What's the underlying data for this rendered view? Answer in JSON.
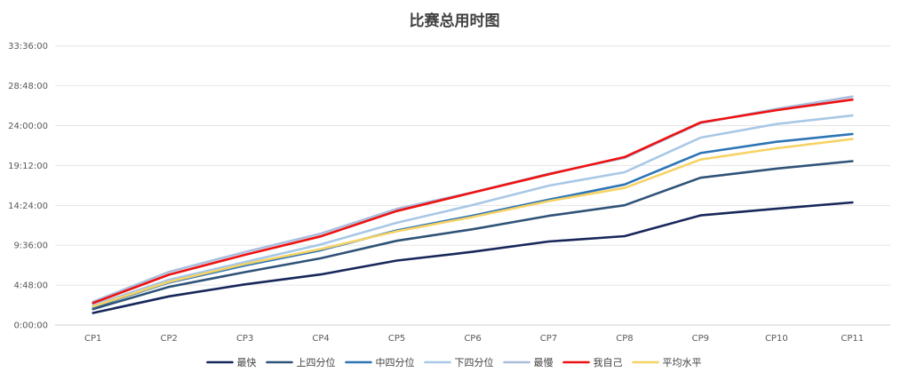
{
  "chart_data": {
    "type": "line",
    "title": "比赛总用时图",
    "xlabel": "",
    "ylabel": "",
    "categories": [
      "CP1",
      "CP2",
      "CP3",
      "CP4",
      "CP5",
      "CP6",
      "CP7",
      "CP8",
      "CP9",
      "CP10",
      "CP11"
    ],
    "y_unit": "seconds",
    "ylim": [
      0,
      122400
    ],
    "y_ticks": [
      0,
      17280,
      34560,
      51840,
      69120,
      86400,
      103680,
      120960
    ],
    "y_tick_labels": [
      "0:00:00",
      "4:48:00",
      "9:36:00",
      "14:24:00",
      "19:12:00",
      "24:00:00",
      "28:48:00",
      "33:36:00"
    ],
    "grid": true,
    "legend_position": "bottom",
    "series": [
      {
        "name": "最快",
        "color": "#17275a",
        "values": [
          5200,
          12400,
          17600,
          21900,
          27900,
          31700,
          36200,
          38500,
          47500,
          50400,
          53100
        ]
      },
      {
        "name": "上四分位",
        "color": "#2f5378",
        "values": [
          6900,
          16500,
          22900,
          28900,
          36500,
          41500,
          47300,
          51900,
          63800,
          67800,
          71000
        ]
      },
      {
        "name": "中四分位",
        "color": "#2e75b6",
        "values": [
          7700,
          18400,
          25800,
          32400,
          41000,
          47400,
          54300,
          60900,
          74500,
          79400,
          82800
        ]
      },
      {
        "name": "下四分位",
        "color": "#a8c8e6",
        "values": [
          8600,
          19600,
          27300,
          34900,
          44300,
          52000,
          60400,
          66200,
          81200,
          87100,
          90800
        ]
      },
      {
        "name": "最慢",
        "color": "#a9bedd",
        "values": [
          10100,
          23000,
          31600,
          39600,
          50300,
          57500,
          65600,
          72400,
          87500,
          93700,
          99000
        ]
      },
      {
        "name": "我自己",
        "color": "#ee1111",
        "values": [
          9500,
          21800,
          30400,
          38400,
          49400,
          57400,
          65300,
          72800,
          87800,
          93100,
          97700
        ]
      },
      {
        "name": "平均水平",
        "color": "#f6d365",
        "values": [
          8000,
          18700,
          26400,
          32900,
          40600,
          46800,
          53700,
          59400,
          71700,
          76600,
          80600
        ]
      }
    ]
  }
}
